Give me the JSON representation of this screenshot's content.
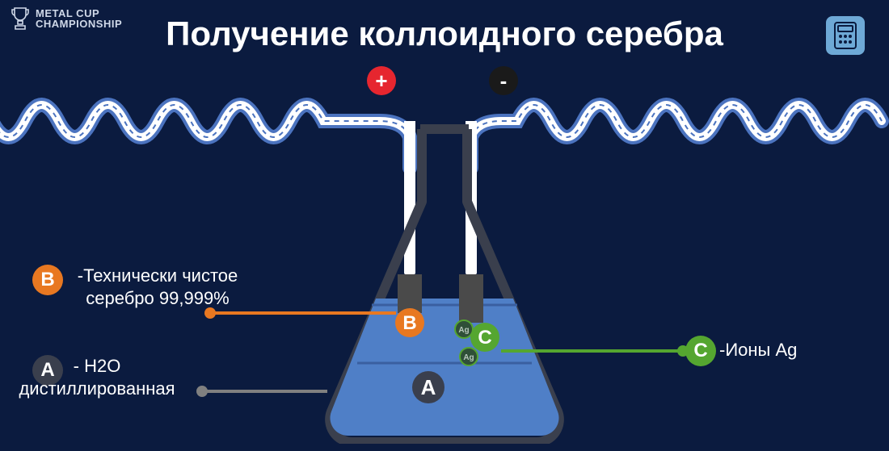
{
  "colors": {
    "bg": "#0b1b3f",
    "title": "#ffffff",
    "wave_stroke": "#ffffff",
    "wave_outer": "#4b73bf",
    "wave_dash": "#4b73bf",
    "flask_outline": "#3a3f4d",
    "flask_liquid": "#4f7fc7",
    "flask_liquid_line": "#3a5fa0",
    "electrode": "#4a4a4a",
    "plus_bg": "#e6262f",
    "minus_bg": "#1a1a1a",
    "badge_B": "#e87821",
    "badge_A": "#3a3f4d",
    "badge_C": "#55a630",
    "conn_B": "#e87821",
    "conn_A": "#808080",
    "conn_C": "#55a630",
    "ion_fill": "#2f4f38",
    "ion_stroke": "#55a630",
    "top_icon_bg": "#6ea9d6",
    "top_icon_stroke": "#0b1b3f"
  },
  "logo": {
    "line1": "METAL CUP",
    "line2": "CHAMPIONSHIP"
  },
  "title": "Получение коллоидного серебра",
  "electrodes": {
    "plus": "+",
    "minus": "-"
  },
  "legend": {
    "B": {
      "letter": "B",
      "text": "-Технически чистое серебро 99,999%"
    },
    "A": {
      "letter": "A",
      "text": "- H2O дистиллированная"
    },
    "C": {
      "letter": "C",
      "text": "-Ионы Ag"
    }
  },
  "flask_labels": {
    "B": "B",
    "A": "A",
    "C": "C",
    "ion": "Ag"
  },
  "wave": {
    "amplitude": 40,
    "period": 82,
    "baseline": 150
  }
}
